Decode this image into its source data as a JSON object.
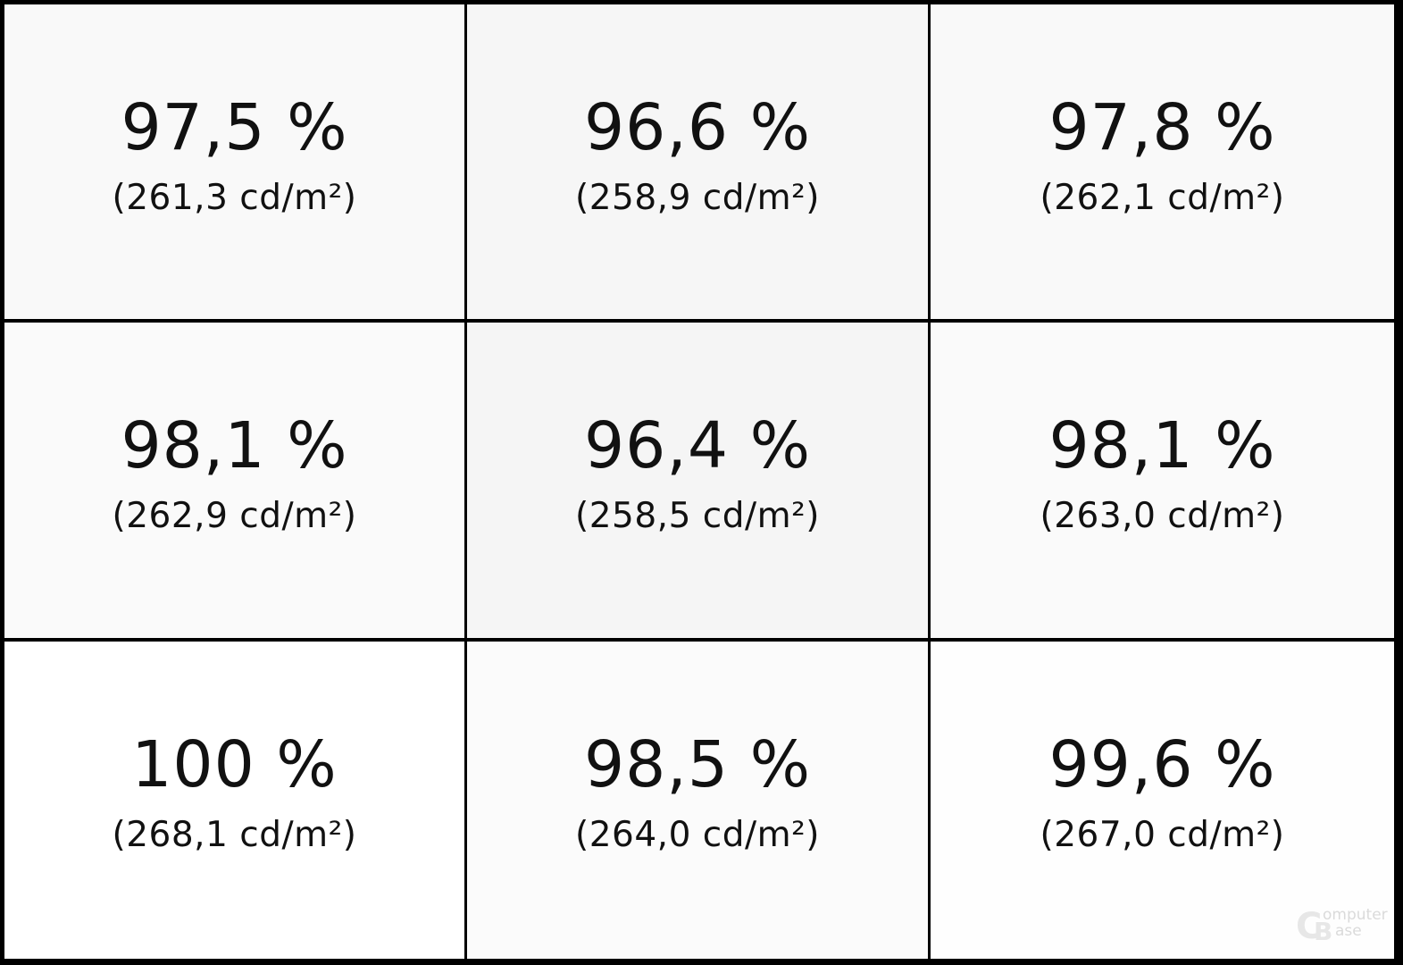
{
  "chart_data": {
    "type": "heatmap",
    "rows": 3,
    "cols": 3,
    "cells": [
      {
        "percent_label": "97,5 %",
        "luminance_label": "(261,3 cd/m²)",
        "percent": 97.5,
        "luminance": 261.3,
        "color": "#f9f9f9"
      },
      {
        "percent_label": "96,6 %",
        "luminance_label": "(258,9 cd/m²)",
        "percent": 96.6,
        "luminance": 258.9,
        "color": "#f6f6f6"
      },
      {
        "percent_label": "97,8 %",
        "luminance_label": "(262,1 cd/m²)",
        "percent": 97.8,
        "luminance": 262.1,
        "color": "#f9f9f9"
      },
      {
        "percent_label": "98,1 %",
        "luminance_label": "(262,9 cd/m²)",
        "percent": 98.1,
        "luminance": 262.9,
        "color": "#fafafa"
      },
      {
        "percent_label": "96,4 %",
        "luminance_label": "(258,5 cd/m²)",
        "percent": 96.4,
        "luminance": 258.5,
        "color": "#f5f5f5"
      },
      {
        "percent_label": "98,1 %",
        "luminance_label": "(263,0 cd/m²)",
        "percent": 98.1,
        "luminance": 263.0,
        "color": "#fafafa"
      },
      {
        "percent_label": "100 %",
        "luminance_label": "(268,1 cd/m²)",
        "percent": 100,
        "luminance": 268.1,
        "color": "#ffffff"
      },
      {
        "percent_label": "98,5 %",
        "luminance_label": "(264,0 cd/m²)",
        "percent": 98.5,
        "luminance": 264.0,
        "color": "#fbfbfb"
      },
      {
        "percent_label": "99,6 %",
        "luminance_label": "(267,0 cd/m²)",
        "percent": 99.6,
        "luminance": 267.0,
        "color": "#fefefe"
      }
    ]
  },
  "watermark": {
    "letter_c": "C",
    "letter_b": "B",
    "text_line1": "omputer",
    "text_line2": "ase"
  }
}
